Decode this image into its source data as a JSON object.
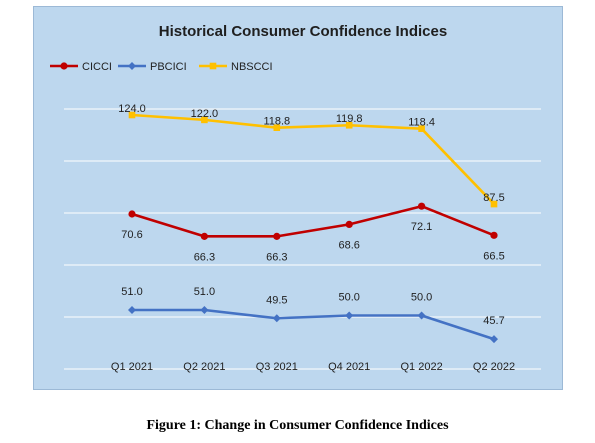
{
  "chart_data": {
    "type": "line",
    "title": "Historical Consumer Confidence Indices",
    "categories": [
      "Q1 2021",
      "Q2 2021",
      "Q3 2021",
      "Q4 2021",
      "Q1 2022",
      "Q2 2022"
    ],
    "series": [
      {
        "name": "CICCI",
        "color": "#c00000",
        "marker": "circle",
        "values": [
          70.6,
          66.3,
          66.3,
          68.6,
          72.1,
          66.5
        ],
        "labels": [
          "70.6",
          "66.3",
          "66.3",
          "68.6",
          "72.1",
          "66.5"
        ]
      },
      {
        "name": "PBCICI",
        "color": "#4472c4",
        "marker": "diamond",
        "values": [
          51.0,
          51.0,
          49.5,
          50.0,
          50.0,
          45.7
        ],
        "labels": [
          "51.0",
          "51.0",
          "49.5",
          "50.0",
          "50.0",
          "45.7"
        ]
      },
      {
        "name": "NBSCCI",
        "color": "#ffc000",
        "marker": "square",
        "values": [
          124.0,
          122.0,
          118.8,
          119.8,
          118.4,
          87.5
        ],
        "labels": [
          "124.0",
          "122.0",
          "118.8",
          "119.8",
          "118.4",
          "87.5"
        ]
      }
    ],
    "grid": true,
    "legend": "top-left",
    "background": "#bdd7ee"
  },
  "caption": "Figure 1: Change in Consumer Confidence Indices"
}
